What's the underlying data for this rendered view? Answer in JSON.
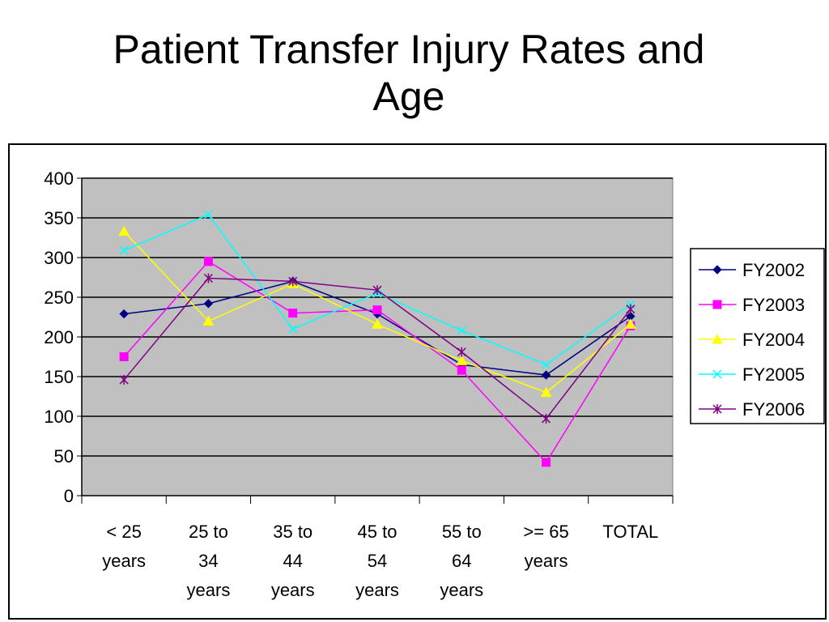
{
  "slide": {
    "title_line1": "Patient Transfer Injury Rates and",
    "title_line2": "Age"
  },
  "chart_data": {
    "type": "line",
    "title": "",
    "xlabel": "",
    "ylabel": "",
    "ylim": [
      0,
      400
    ],
    "yticks": [
      0,
      50,
      100,
      150,
      200,
      250,
      300,
      350,
      400
    ],
    "grid": true,
    "plot_background": "#C0C0C0",
    "legend_position": "right",
    "categories": [
      [
        "< 25",
        "years"
      ],
      [
        "25 to",
        "34",
        "years"
      ],
      [
        "35 to",
        "44",
        "years"
      ],
      [
        "45 to",
        "54",
        "years"
      ],
      [
        "55 to",
        "64",
        "years"
      ],
      [
        ">= 65",
        "years"
      ],
      [
        "TOTAL"
      ]
    ],
    "series": [
      {
        "name": "FY2002",
        "color": "#000080",
        "marker": "diamond",
        "values": [
          229,
          242,
          270,
          229,
          165,
          152,
          226
        ]
      },
      {
        "name": "FY2003",
        "color": "#FF00FF",
        "marker": "square",
        "values": [
          175,
          295,
          230,
          234,
          158,
          42,
          214
        ]
      },
      {
        "name": "FY2004",
        "color": "#FFFF00",
        "marker": "triangle",
        "values": [
          333,
          220,
          267,
          216,
          170,
          130,
          216
        ]
      },
      {
        "name": "FY2005",
        "color": "#00FFFF",
        "marker": "x",
        "values": [
          309,
          354,
          210,
          255,
          208,
          165,
          241
        ]
      },
      {
        "name": "FY2006",
        "color": "#800080",
        "marker": "star",
        "values": [
          146,
          274,
          270,
          259,
          181,
          97,
          235
        ]
      }
    ]
  }
}
